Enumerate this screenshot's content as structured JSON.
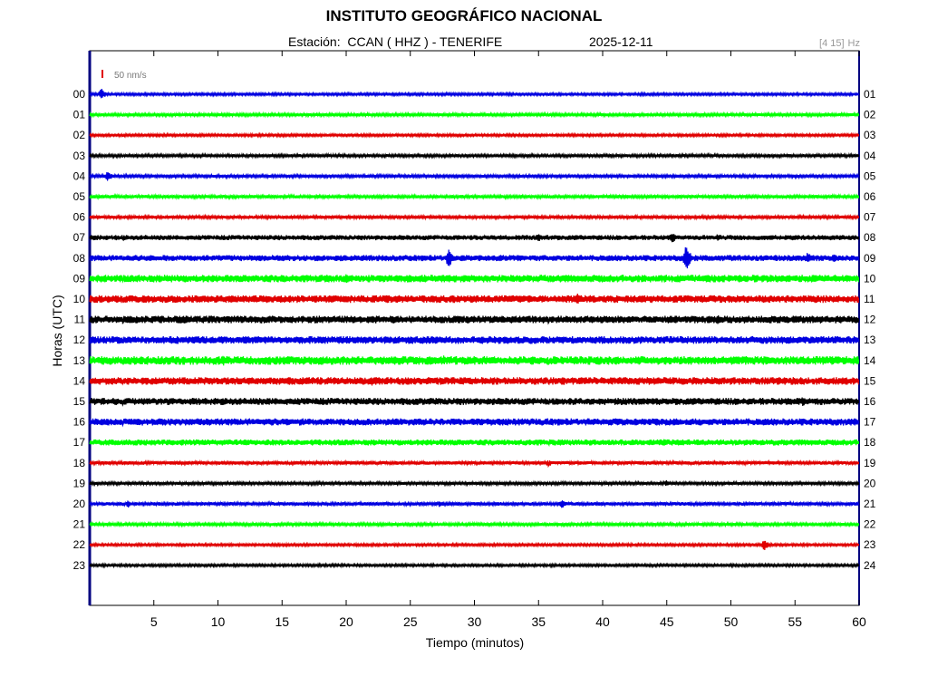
{
  "header": {
    "title": "INSTITUTO GEOGRÁFICO NACIONAL",
    "station_label": "Estación:  CCAN ( HHZ ) - TENERIFE",
    "date": "2025-12-11",
    "filter_band": "[4 15]",
    "filter_unit": "Hz"
  },
  "chart_data": {
    "type": "line",
    "title": "INSTITUTO GEOGRÁFICO NACIONAL",
    "xlabel": "Tiempo (minutos)",
    "ylabel": "Horas (UTC)",
    "xlim": [
      0,
      60
    ],
    "x_ticks": [
      5,
      10,
      15,
      20,
      25,
      30,
      35,
      40,
      45,
      50,
      55,
      60
    ],
    "scale_bar_label": "50 nm/s",
    "scale_bar_color": "#e00000",
    "grid": false,
    "rows": [
      {
        "left": "00",
        "right": "01",
        "color": "#0000e0",
        "amp": 1.0,
        "events": [
          {
            "t": 0.9,
            "a": 7
          }
        ]
      },
      {
        "left": "01",
        "right": "02",
        "color": "#00ff00",
        "amp": 1.2,
        "events": []
      },
      {
        "left": "02",
        "right": "03",
        "color": "#e00000",
        "amp": 1.0,
        "events": []
      },
      {
        "left": "03",
        "right": "04",
        "color": "#000000",
        "amp": 1.2,
        "events": []
      },
      {
        "left": "04",
        "right": "05",
        "color": "#0000e0",
        "amp": 1.2,
        "events": [
          {
            "t": 1.4,
            "a": 7
          }
        ]
      },
      {
        "left": "05",
        "right": "06",
        "color": "#00ff00",
        "amp": 1.3,
        "events": []
      },
      {
        "left": "06",
        "right": "07",
        "color": "#e00000",
        "amp": 1.3,
        "events": []
      },
      {
        "left": "07",
        "right": "08",
        "color": "#000000",
        "amp": 2.0,
        "events": [
          {
            "t": 35.0,
            "a": 5
          },
          {
            "t": 45.4,
            "a": 7
          },
          {
            "t": 49.0,
            "a": 5
          }
        ]
      },
      {
        "left": "08",
        "right": "09",
        "color": "#0000e0",
        "amp": 2.4,
        "events": [
          {
            "t": 28.0,
            "a": 13
          },
          {
            "t": 46.5,
            "a": 17
          },
          {
            "t": 56.0,
            "a": 7
          },
          {
            "t": 58.0,
            "a": 6
          }
        ]
      },
      {
        "left": "09",
        "right": "10",
        "color": "#00ff00",
        "amp": 3.0,
        "events": [
          {
            "t": 15.0,
            "a": 6
          },
          {
            "t": 20.0,
            "a": 7
          },
          {
            "t": 52.0,
            "a": 5
          }
        ]
      },
      {
        "left": "10",
        "right": "11",
        "color": "#e00000",
        "amp": 3.0,
        "events": [
          {
            "t": 17.6,
            "a": 5
          },
          {
            "t": 38.0,
            "a": 8
          }
        ]
      },
      {
        "left": "11",
        "right": "12",
        "color": "#000000",
        "amp": 3.0,
        "events": [
          {
            "t": 3.2,
            "a": 6
          },
          {
            "t": 49.0,
            "a": 6
          }
        ]
      },
      {
        "left": "12",
        "right": "13",
        "color": "#0000e0",
        "amp": 3.0,
        "events": [
          {
            "t": 13.0,
            "a": 5
          }
        ]
      },
      {
        "left": "13",
        "right": "14",
        "color": "#00ff00",
        "amp": 3.4,
        "events": [
          {
            "t": 10.4,
            "a": 7
          },
          {
            "t": 27.6,
            "a": 6
          },
          {
            "t": 31.2,
            "a": 5
          }
        ]
      },
      {
        "left": "14",
        "right": "15",
        "color": "#e00000",
        "amp": 3.0,
        "events": [
          {
            "t": 22.0,
            "a": 6
          },
          {
            "t": 57.4,
            "a": 5
          }
        ]
      },
      {
        "left": "15",
        "right": "16",
        "color": "#000000",
        "amp": 2.8,
        "events": [
          {
            "t": 55.6,
            "a": 6
          }
        ]
      },
      {
        "left": "16",
        "right": "17",
        "color": "#0000e0",
        "amp": 2.8,
        "events": []
      },
      {
        "left": "17",
        "right": "18",
        "color": "#00ff00",
        "amp": 2.4,
        "events": [
          {
            "t": 44.8,
            "a": 5
          }
        ]
      },
      {
        "left": "18",
        "right": "19",
        "color": "#e00000",
        "amp": 1.4,
        "events": [
          {
            "t": 35.8,
            "a": 5
          }
        ]
      },
      {
        "left": "19",
        "right": "20",
        "color": "#000000",
        "amp": 1.2,
        "events": [
          {
            "t": 45.0,
            "a": 4
          }
        ]
      },
      {
        "left": "20",
        "right": "21",
        "color": "#0000e0",
        "amp": 1.4,
        "events": [
          {
            "t": 3.0,
            "a": 5
          },
          {
            "t": 27.3,
            "a": 4
          },
          {
            "t": 36.8,
            "a": 6
          }
        ]
      },
      {
        "left": "21",
        "right": "22",
        "color": "#00ff00",
        "amp": 1.2,
        "events": []
      },
      {
        "left": "22",
        "right": "23",
        "color": "#e00000",
        "amp": 1.0,
        "events": [
          {
            "t": 52.6,
            "a": 7
          }
        ]
      },
      {
        "left": "23",
        "right": "24",
        "color": "#000000",
        "amp": 1.0,
        "events": []
      }
    ]
  }
}
